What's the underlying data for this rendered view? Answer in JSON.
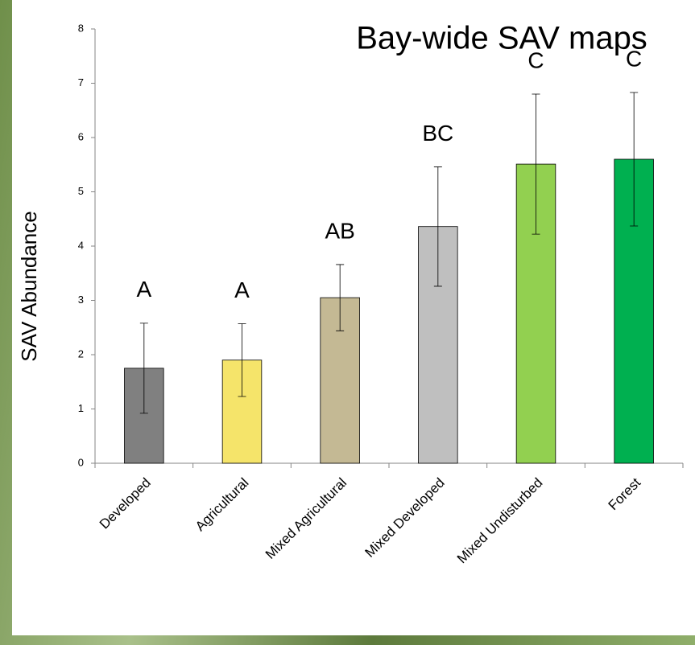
{
  "chart_data": {
    "type": "bar",
    "title": "Bay-wide SAV maps",
    "y_label": "SAV Abundance",
    "categories": [
      "Developed",
      "Agricultural",
      "Mixed Agricultural",
      "Mixed Developed",
      "Mixed Undisturbed",
      "Forest"
    ],
    "values": [
      1.75,
      1.9,
      3.05,
      4.36,
      5.51,
      5.6
    ],
    "errors": [
      0.83,
      0.67,
      0.61,
      1.1,
      1.29,
      1.23
    ],
    "colors": [
      "#808080",
      "#f5e46a",
      "#c4b994",
      "#bfbfbf",
      "#92d050",
      "#00b050"
    ],
    "annotations": [
      "A",
      "A",
      "AB",
      "BC",
      "C",
      "C"
    ],
    "ylim": [
      0,
      8
    ],
    "yticks": [
      0,
      1,
      2,
      3,
      4,
      5,
      6,
      7,
      8
    ],
    "grid": false
  }
}
